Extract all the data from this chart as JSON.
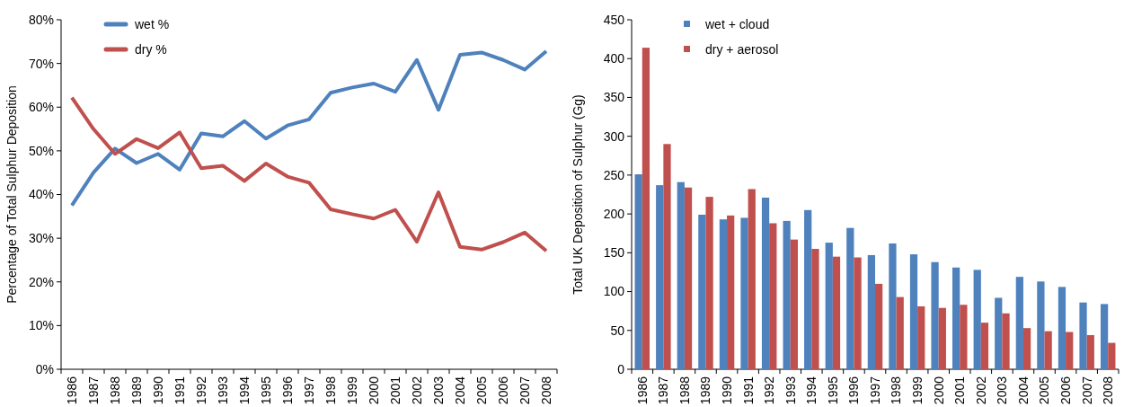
{
  "chart_data": [
    {
      "type": "line",
      "ylabel": "Percentage of Total Sulphur Deposition",
      "categories": [
        "1986",
        "1987",
        "1988",
        "1989",
        "1990",
        "1991",
        "1992",
        "1993",
        "1994",
        "1995",
        "1996",
        "1997",
        "1998",
        "1999",
        "2000",
        "2001",
        "2002",
        "2003",
        "2004",
        "2005",
        "2006",
        "2007",
        "2008"
      ],
      "series": [
        {
          "name": "wet %",
          "color": "#4f81bd",
          "values": [
            37.5,
            45,
            50.5,
            47.2,
            49.3,
            45.7,
            54,
            53.3,
            56.8,
            52.8,
            55.8,
            57.2,
            63.3,
            64.5,
            65.4,
            63.5,
            70.8,
            59.4,
            72,
            72.5,
            70.8,
            68.6,
            72.8
          ]
        },
        {
          "name": "dry %",
          "color": "#c0504d",
          "values": [
            62.2,
            55,
            49.3,
            52.7,
            50.6,
            54.2,
            46,
            46.6,
            43.1,
            47.1,
            44.1,
            42.7,
            36.6,
            35.5,
            34.5,
            36.5,
            29.2,
            40.5,
            28,
            27.4,
            29.1,
            31.3,
            27.1
          ]
        }
      ],
      "ylim": [
        0,
        80
      ],
      "yticks": [
        {
          "value": 0,
          "label": "0%"
        },
        {
          "value": 10,
          "label": "10%"
        },
        {
          "value": 20,
          "label": "20%"
        },
        {
          "value": 30,
          "label": "30%"
        },
        {
          "value": 40,
          "label": "40%"
        },
        {
          "value": 50,
          "label": "50%"
        },
        {
          "value": 60,
          "label": "60%"
        },
        {
          "value": 70,
          "label": "70%"
        },
        {
          "value": 80,
          "label": "80%"
        }
      ],
      "legend": "top left",
      "marker": "none",
      "line_style": "solid"
    },
    {
      "type": "bar",
      "ylabel": "Total UK Deposition of Sulphur (Gg)",
      "categories": [
        "1986",
        "1987",
        "1988",
        "1989",
        "1990",
        "1991",
        "1992",
        "1993",
        "1994",
        "1995",
        "1996",
        "1997",
        "1998",
        "1999",
        "2000",
        "2001",
        "2002",
        "2003",
        "2004",
        "2005",
        "2006",
        "2007",
        "2008"
      ],
      "series": [
        {
          "name": "wet + cloud",
          "color": "#4f81bd",
          "values": [
            251,
            237,
            241,
            199,
            193,
            195,
            221,
            191,
            205,
            163,
            182,
            147,
            162,
            148,
            138,
            131,
            128,
            92,
            119,
            113,
            106,
            86,
            84
          ]
        },
        {
          "name": "dry + aerosol",
          "color": "#c0504d",
          "values": [
            414,
            290,
            234,
            222,
            198,
            232,
            188,
            167,
            155,
            145,
            144,
            110,
            93,
            81,
            79,
            83,
            60,
            72,
            53,
            49,
            48,
            44,
            34
          ]
        }
      ],
      "ylim": [
        0,
        450
      ],
      "yticks": [
        0,
        50,
        100,
        150,
        200,
        250,
        300,
        350,
        400,
        450
      ],
      "legend": "top left"
    }
  ]
}
